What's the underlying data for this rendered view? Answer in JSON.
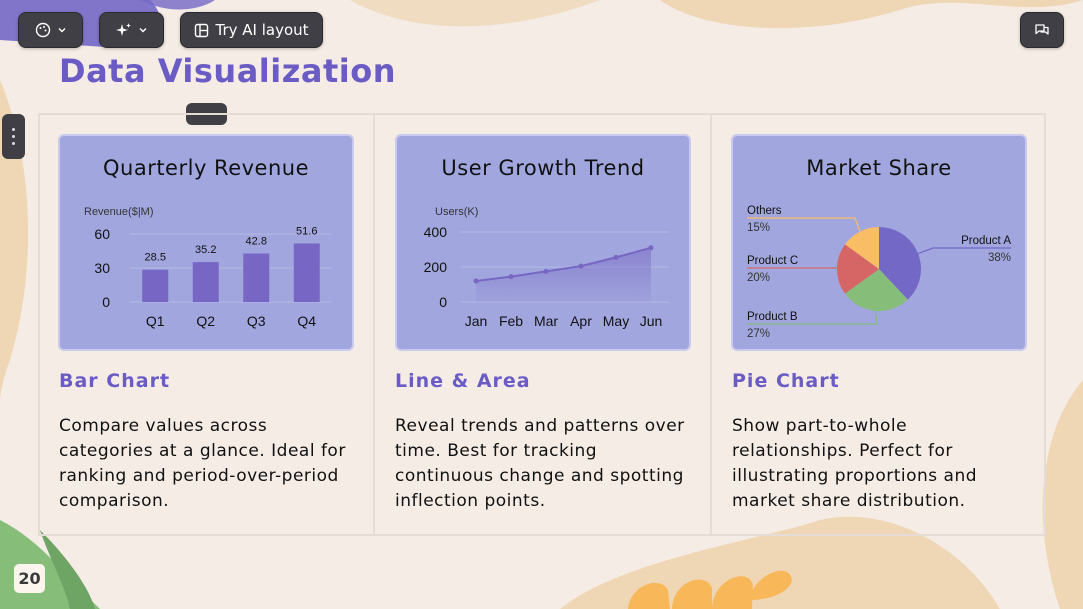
{
  "toolbar": {
    "theme_icon": "palette-icon",
    "ai_icon": "sparkle-icon",
    "ai_layout_icon": "layout-icon",
    "ai_layout_label": "Try AI layout",
    "chat_icon": "chat-icon"
  },
  "slide": {
    "title": "Data Visualization",
    "handle_label": "...",
    "number": "20"
  },
  "colors": {
    "accent": "#6a5cc4",
    "card": "#a1a7de",
    "background": "#f6ece6",
    "series": "#7866c4"
  },
  "columns": [
    {
      "heading": "Bar Chart",
      "description": "Compare values across categories at a glance. Ideal for ranking and period-over-period comparison."
    },
    {
      "heading": "Line & Area",
      "description": "Reveal trends and patterns over time. Best for tracking continuous change and spotting inflection points."
    },
    {
      "heading": "Pie Chart",
      "description": "Show part-to-whole relationships. Perfect for illustrating proportions and market share distribution."
    }
  ],
  "chart_data": [
    {
      "type": "bar",
      "title": "Quarterly Revenue",
      "ylabel": "Revenue($|M)",
      "categories": [
        "Q1",
        "Q2",
        "Q3",
        "Q4"
      ],
      "values": [
        28.5,
        35.2,
        42.8,
        51.6
      ],
      "value_labels": [
        "28.5",
        "35.2",
        "42.8",
        "51.6"
      ],
      "yticks": [
        0,
        30,
        60
      ],
      "ylim": [
        0,
        60
      ],
      "grid": "horizontal",
      "legend": "none"
    },
    {
      "type": "area",
      "title": "User Growth Trend",
      "ylabel": "Users(K)",
      "categories": [
        "Jan",
        "Feb",
        "Mar",
        "Apr",
        "May",
        "Jun"
      ],
      "values": [
        120,
        145,
        175,
        205,
        255,
        310
      ],
      "yticks": [
        0,
        200,
        400
      ],
      "ylim": [
        0,
        400
      ],
      "grid": "horizontal",
      "legend": "none"
    },
    {
      "type": "pie",
      "title": "Market Share",
      "slices": [
        {
          "label": "Product A",
          "value": 38,
          "pct_label": "38%",
          "color": "#7468c7"
        },
        {
          "label": "Product B",
          "value": 27,
          "pct_label": "27%",
          "color": "#86bd78"
        },
        {
          "label": "Product C",
          "value": 20,
          "pct_label": "20%",
          "color": "#d66565"
        },
        {
          "label": "Others",
          "value": 15,
          "pct_label": "15%",
          "color": "#f9bd66"
        }
      ],
      "legend": "outside labels"
    }
  ]
}
